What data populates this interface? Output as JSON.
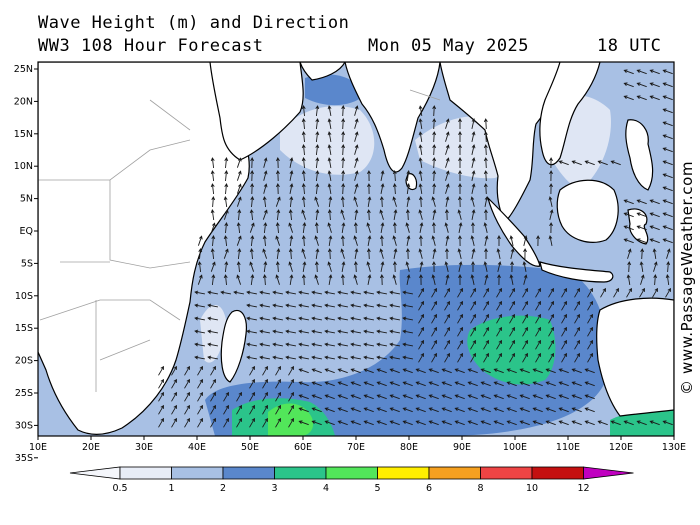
{
  "title": {
    "line1": "Wave Height (m) and Direction",
    "line2": "WW3 108 Hour Forecast",
    "date": "Mon 05 May 2025",
    "time": "18 UTC"
  },
  "credit": "© www.PassageWeather.com",
  "map": {
    "lat_labels": [
      "25N",
      "20N",
      "15N",
      "10N",
      "5N",
      "EQ",
      "5S",
      "10S",
      "15S",
      "20S",
      "25S",
      "30S",
      "35S"
    ],
    "lon_labels": [
      "10E",
      "20E",
      "30E",
      "40E",
      "50E",
      "60E",
      "70E",
      "80E",
      "90E",
      "100E",
      "110E",
      "120E",
      "130E"
    ],
    "colors": {
      "land": "#ffffff",
      "sea_0_5": "#dfe6f4",
      "sea_1_2": "#a8c0e4",
      "sea_2_3": "#5a87cc",
      "sea_3_4": "#2bc48a",
      "sea_4_5": "#52e65a",
      "coast": "#000000",
      "border": "#a0a0a0",
      "arrow": "#1a1a1a"
    }
  },
  "legend": {
    "ticks": [
      "0.5",
      "1",
      "2",
      "3",
      "4",
      "5",
      "6",
      "8",
      "10",
      "12"
    ],
    "bins": [
      {
        "color": "#e8edf7"
      },
      {
        "color": "#a8c0e4"
      },
      {
        "color": "#5a87cc"
      },
      {
        "color": "#2bc48a"
      },
      {
        "color": "#52e65a"
      },
      {
        "color": "#ffee00"
      },
      {
        "color": "#f5a020"
      },
      {
        "color": "#ee4444"
      },
      {
        "color": "#c41010"
      }
    ],
    "end_color": "#c000c0"
  }
}
